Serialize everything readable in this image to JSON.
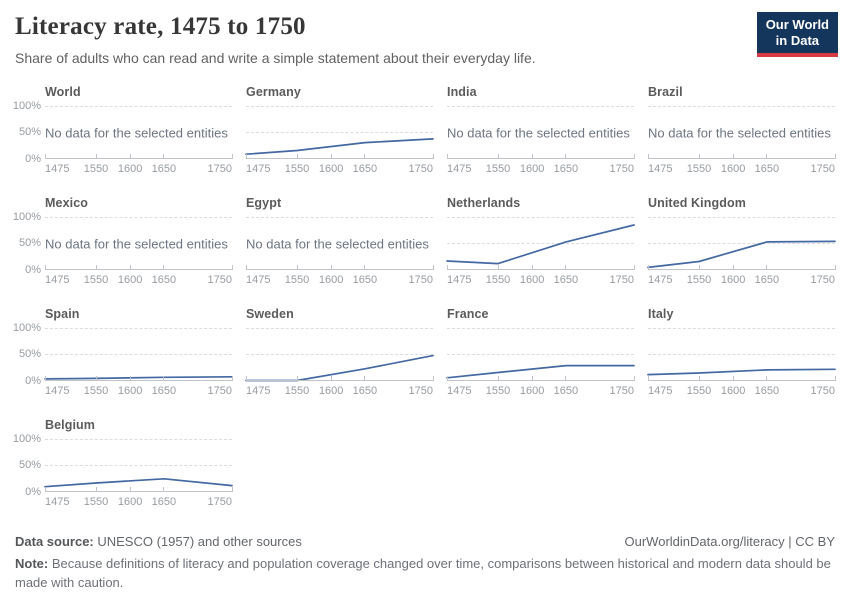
{
  "header": {
    "title": "Literacy rate, 1475 to 1750",
    "subtitle": "Share of adults who can read and write a simple statement about their everyday life.",
    "logo": {
      "line1": "Our World",
      "line2": "in Data",
      "bg_color": "#14355c",
      "accent_color": "#d73a42"
    }
  },
  "chart_data": {
    "type": "line",
    "faceted": true,
    "x_years": [
      1475,
      1550,
      1650,
      1750
    ],
    "xlim": [
      1475,
      1750
    ],
    "ylim": [
      0,
      100
    ],
    "unit": "%",
    "grid": "dashed horizontal at 50% and 100%",
    "x_tick_labels": [
      "1475",
      "1550",
      "1600",
      "1650",
      "1750"
    ],
    "x_tick_positions_pct": [
      0,
      27.3,
      45.5,
      63.6,
      100
    ],
    "y_tick_labels": [
      "100%",
      "50%",
      "0%"
    ],
    "no_data_text": "No data for the selected entities",
    "line_color": "#4468a1",
    "panels": [
      {
        "name": "World",
        "no_data": true
      },
      {
        "name": "Germany",
        "values": [
          9,
          16,
          31,
          38
        ]
      },
      {
        "name": "India",
        "no_data": true
      },
      {
        "name": "Brazil",
        "no_data": true
      },
      {
        "name": "Mexico",
        "no_data": true
      },
      {
        "name": "Egypt",
        "no_data": true
      },
      {
        "name": "Netherlands",
        "values": [
          17,
          12,
          53,
          85
        ]
      },
      {
        "name": "United Kingdom",
        "values": [
          5,
          16,
          53,
          54
        ]
      },
      {
        "name": "Spain",
        "values": [
          4,
          5,
          7,
          8
        ]
      },
      {
        "name": "Sweden",
        "values": [
          1,
          1,
          23,
          48
        ]
      },
      {
        "name": "France",
        "values": [
          6,
          16,
          29,
          29
        ]
      },
      {
        "name": "Italy",
        "values": [
          12,
          15,
          21,
          22
        ]
      },
      {
        "name": "Belgium",
        "values": [
          10,
          17,
          25,
          12
        ]
      }
    ]
  },
  "footer": {
    "source_label": "Data source:",
    "source_text": " UNESCO (1957) and other sources",
    "credit": "OurWorldinData.org/literacy | CC BY",
    "note_label": "Note:",
    "note_text": " Because definitions of literacy and population coverage changed over time, comparisons between historical and modern data should be made with caution."
  }
}
